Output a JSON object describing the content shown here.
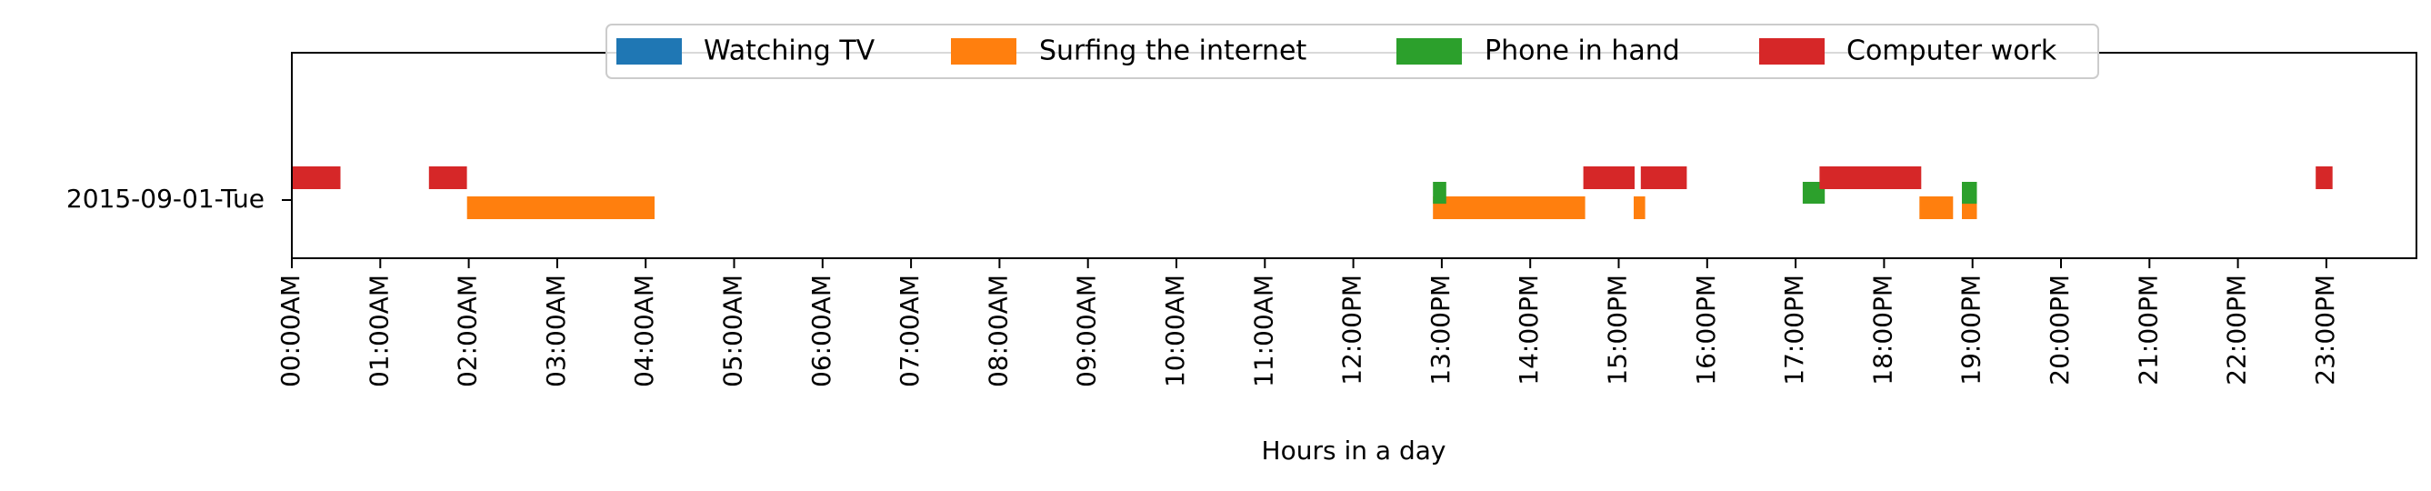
{
  "chart_data": {
    "type": "timeline",
    "title": "",
    "xlabel": "Hours in a day",
    "ylabel": "",
    "xlim": [
      0,
      24
    ],
    "x_ticks": [
      {
        "hour": 0,
        "label": "00:00AM"
      },
      {
        "hour": 1,
        "label": "01:00AM"
      },
      {
        "hour": 2,
        "label": "02:00AM"
      },
      {
        "hour": 3,
        "label": "03:00AM"
      },
      {
        "hour": 4,
        "label": "04:00AM"
      },
      {
        "hour": 5,
        "label": "05:00AM"
      },
      {
        "hour": 6,
        "label": "06:00AM"
      },
      {
        "hour": 7,
        "label": "07:00AM"
      },
      {
        "hour": 8,
        "label": "08:00AM"
      },
      {
        "hour": 9,
        "label": "09:00AM"
      },
      {
        "hour": 10,
        "label": "10:00AM"
      },
      {
        "hour": 11,
        "label": "11:00AM"
      },
      {
        "hour": 12,
        "label": "12:00PM"
      },
      {
        "hour": 13,
        "label": "13:00PM"
      },
      {
        "hour": 14,
        "label": "14:00PM"
      },
      {
        "hour": 15,
        "label": "15:00PM"
      },
      {
        "hour": 16,
        "label": "16:00PM"
      },
      {
        "hour": 17,
        "label": "17:00PM"
      },
      {
        "hour": 18,
        "label": "18:00PM"
      },
      {
        "hour": 19,
        "label": "19:00PM"
      },
      {
        "hour": 20,
        "label": "20:00PM"
      },
      {
        "hour": 21,
        "label": "21:00PM"
      },
      {
        "hour": 22,
        "label": "22:00PM"
      },
      {
        "hour": 23,
        "label": "23:00PM"
      }
    ],
    "categories": [
      "2015-09-01-Tue"
    ],
    "legend_position": "top-center",
    "grid": false,
    "series": [
      {
        "name": "Watching TV",
        "color": "#1f77b4",
        "intervals": []
      },
      {
        "name": "Surfing the internet",
        "color": "#ff7f0e",
        "intervals": [
          [
            1.98,
            4.1
          ],
          [
            12.9,
            14.62
          ],
          [
            15.17,
            15.3
          ],
          [
            18.4,
            18.78
          ],
          [
            18.88,
            19.05
          ]
        ]
      },
      {
        "name": "Phone in hand",
        "color": "#2ca02c",
        "intervals": [
          [
            12.9,
            13.05
          ],
          [
            17.08,
            17.33
          ],
          [
            18.88,
            19.05
          ]
        ]
      },
      {
        "name": "Computer work",
        "color": "#d62728",
        "intervals": [
          [
            0.0,
            0.55
          ],
          [
            1.55,
            1.98
          ],
          [
            14.6,
            15.18
          ],
          [
            15.25,
            15.77
          ],
          [
            17.27,
            18.42
          ],
          [
            22.88,
            23.07
          ]
        ]
      }
    ]
  }
}
